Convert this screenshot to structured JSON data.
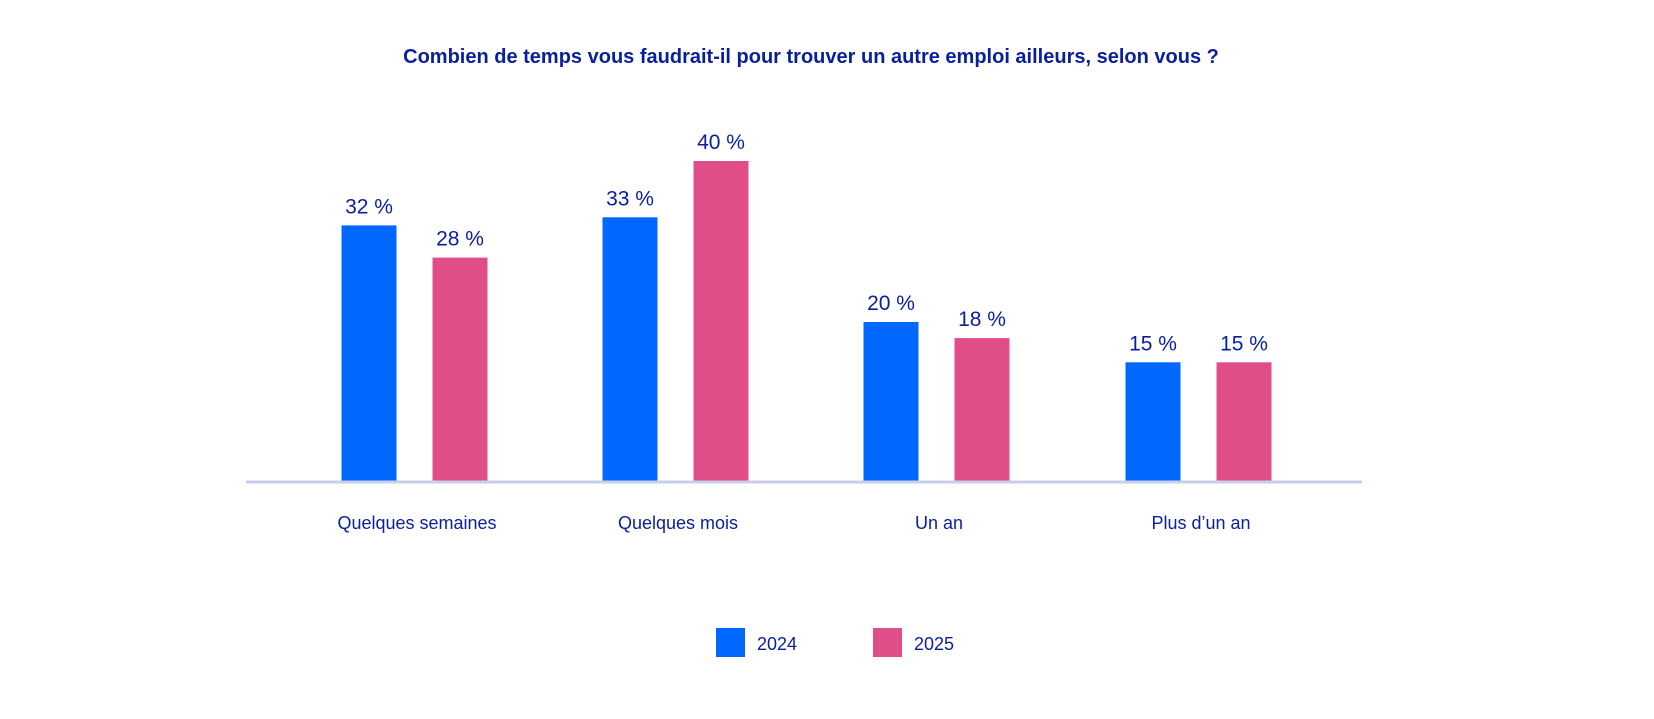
{
  "chart_data": {
    "type": "bar",
    "title": "Combien de temps vous faudrait-il pour trouver un autre emploi ailleurs, selon vous ?",
    "categories": [
      "Quelques semaines",
      "Quelques mois",
      "Un an",
      "Plus d’un an"
    ],
    "series": [
      {
        "name": "2024",
        "values": [
          32,
          33,
          20,
          15
        ],
        "labels": [
          "32 %",
          "33 %",
          "20 %",
          "15 %"
        ],
        "color": "#0068ff"
      },
      {
        "name": "2025",
        "values": [
          28,
          40,
          18,
          15
        ],
        "labels": [
          "28 %",
          "40 %",
          "18 %",
          "15 %"
        ],
        "color": "#e04e8a"
      }
    ],
    "ylim": [
      0,
      45
    ],
    "grid": false,
    "legend_position": "bottom-center",
    "text_color": "#0a1f9e",
    "baseline_color": "#c9cfe8"
  }
}
